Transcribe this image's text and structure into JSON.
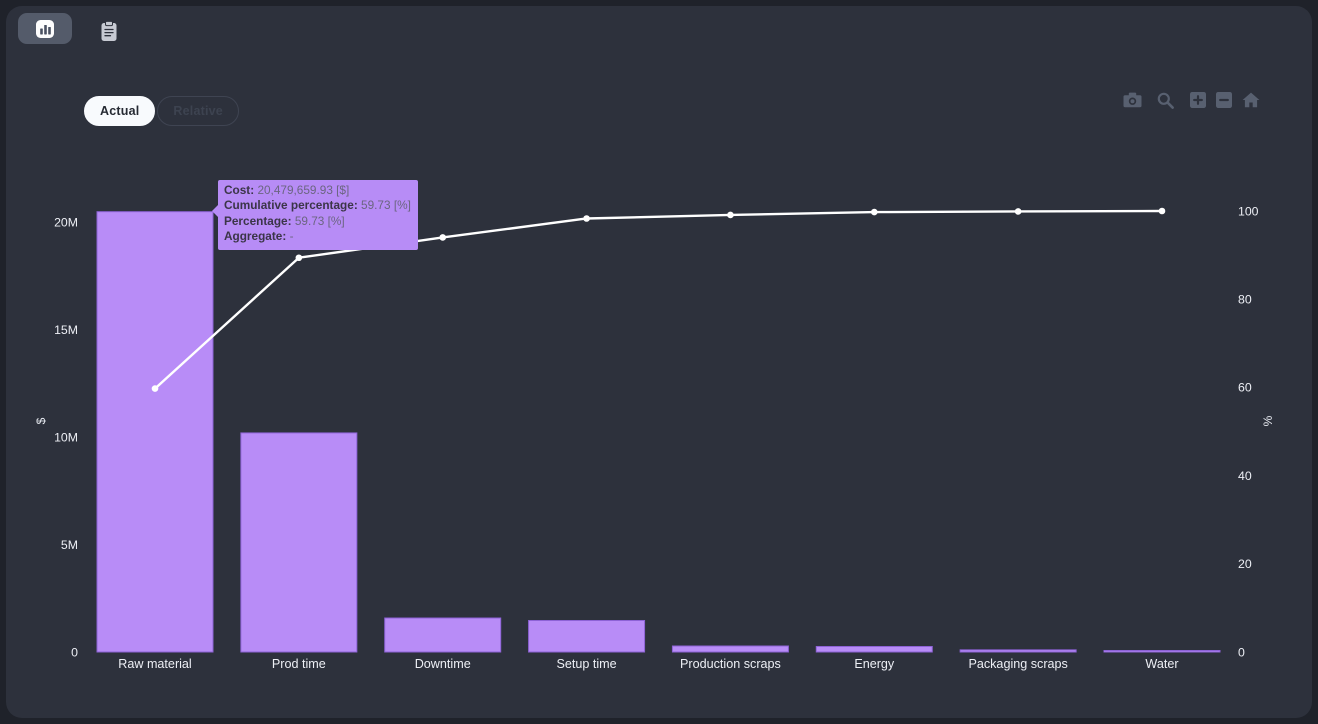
{
  "app": {
    "backdrop_color": "#1f222a",
    "surface_color": "#2d313c"
  },
  "header": {
    "icons": [
      "bar-chart",
      "clipboard"
    ]
  },
  "view_toggle": {
    "options": [
      {
        "label": "Actual",
        "active": true
      },
      {
        "label": "Relative",
        "active": false
      }
    ]
  },
  "modebar": {
    "icons": [
      "camera",
      "zoom",
      "zoom-in",
      "zoom-out",
      "reset-home"
    ]
  },
  "tooltip": {
    "separator": ": ",
    "background": "#b78cf6",
    "rows": [
      {
        "label": "Cost",
        "value": "20,479,659.93 [$]"
      },
      {
        "label": "Cumulative percentage",
        "value": "59.73 [%]"
      },
      {
        "label": "Percentage",
        "value": "59.73 [%]"
      },
      {
        "label": "Aggregate",
        "value": "-"
      }
    ]
  },
  "chart_data": {
    "type": "bar+line (pareto)",
    "categories": [
      "Raw material",
      "Prod time",
      "Downtime",
      "Setup time",
      "Production scraps",
      "Energy",
      "Packaging scraps",
      "Water"
    ],
    "series": [
      {
        "name": "Cost",
        "type": "bar",
        "unit": "$",
        "values": [
          20479659.93,
          10190000,
          1581000,
          1465000,
          279000,
          256000,
          100000,
          30000
        ]
      },
      {
        "name": "Cumulative percentage",
        "type": "line",
        "unit": "%",
        "values": [
          59.73,
          89.4,
          94.0,
          98.3,
          99.1,
          99.75,
          99.9,
          100
        ]
      }
    ],
    "y_axis_left": {
      "title": "$",
      "range": [
        0,
        20500000
      ],
      "ticks": [
        {
          "value": 0,
          "label": "0"
        },
        {
          "value": 5000000,
          "label": "5M"
        },
        {
          "value": 10000000,
          "label": "10M"
        },
        {
          "value": 15000000,
          "label": "15M"
        },
        {
          "value": 20000000,
          "label": "20M"
        }
      ]
    },
    "y_axis_right": {
      "title": "%",
      "range": [
        0,
        100
      ],
      "ticks": [
        {
          "value": 0,
          "label": "0"
        },
        {
          "value": 20,
          "label": "20"
        },
        {
          "value": 40,
          "label": "40"
        },
        {
          "value": 60,
          "label": "60"
        },
        {
          "value": 80,
          "label": "80"
        },
        {
          "value": 100,
          "label": "100"
        }
      ]
    },
    "colors": {
      "bar": "#b88cf7",
      "bar_border": "#8d62d6",
      "line": "#ffffff"
    },
    "grid": false,
    "legend": "none"
  }
}
